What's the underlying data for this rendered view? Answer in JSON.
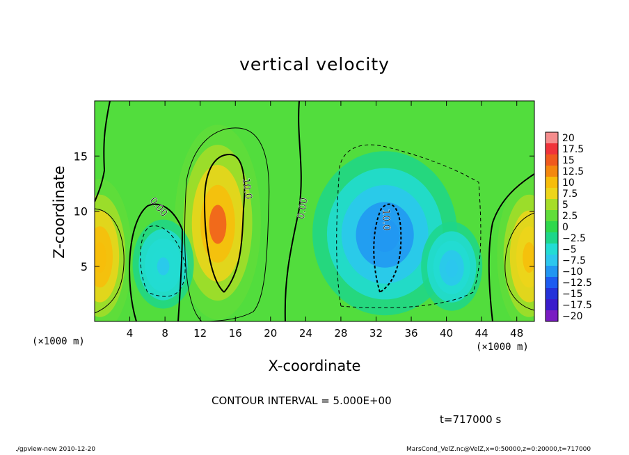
{
  "chart_data": {
    "type": "heatmap",
    "title": "vertical velocity",
    "xlabel": "X-coordinate",
    "ylabel": "Z-coordinate",
    "x_unit_label": "(×1000 m)",
    "xlim": [
      0,
      50
    ],
    "ylim": [
      0,
      20
    ],
    "x_ticks": [
      "4",
      "8",
      "12",
      "16",
      "20",
      "24",
      "28",
      "32",
      "36",
      "40",
      "44",
      "48"
    ],
    "y_ticks": [
      "5",
      "10",
      "15"
    ],
    "colorbar": {
      "labels": [
        "20",
        "17.5",
        "15",
        "12.5",
        "10",
        "7.5",
        "5",
        "2.5",
        "0",
        "−2.5",
        "−5",
        "−7.5",
        "−10",
        "−12.5",
        "−15",
        "−17.5",
        "−20"
      ],
      "range": [
        -20,
        20
      ],
      "colors": [
        "#f58d8d",
        "#f0333a",
        "#f05a1e",
        "#f4880e",
        "#f7bd0a",
        "#edd51a",
        "#a6dd28",
        "#60dd3a",
        "#2ed84c",
        "#1dd68a",
        "#22dcd4",
        "#2cc7ee",
        "#2196f2",
        "#1d5cf0",
        "#2432d9",
        "#3a1ccb",
        "#7a1cc2"
      ]
    },
    "contour_labels": [
      "10.0",
      "0.00",
      "0.00",
      "0.00",
      "10.0"
    ],
    "features": [
      {
        "x": 14,
        "z": 9,
        "w": 14,
        "label": "updraft"
      },
      {
        "x": 0.6,
        "z": 6,
        "w": 11,
        "label": "updraft"
      },
      {
        "x": 49.4,
        "z": 6,
        "w": 10,
        "label": "updraft"
      },
      {
        "x": 7.8,
        "z": 5.2,
        "w": -7,
        "label": "downdraft"
      },
      {
        "x": 33,
        "z": 8,
        "w": -11,
        "label": "downdraft"
      },
      {
        "x": 40.6,
        "z": 5,
        "w": -8,
        "label": "downdraft"
      }
    ]
  },
  "annotations": {
    "contour_interval": "CONTOUR INTERVAL = 5.000E+00",
    "time": "t=717000 s",
    "footer_left": "./gpview-new  2010-12-20",
    "footer_right": "MarsCond_VelZ.nc@VelZ,x=0:50000,z=0:20000,t=717000"
  }
}
